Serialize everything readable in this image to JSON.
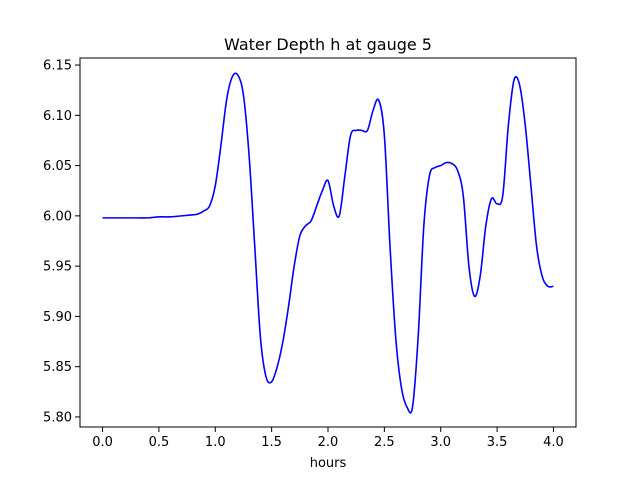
{
  "chart_data": {
    "type": "line",
    "title": "Water Depth h at gauge 5",
    "xlabel": "hours",
    "ylabel": "",
    "xlim": [
      -0.2,
      4.2
    ],
    "ylim": [
      5.79,
      6.157
    ],
    "x_ticks": [
      0.0,
      0.5,
      1.0,
      1.5,
      2.0,
      2.5,
      3.0,
      3.5,
      4.0
    ],
    "x_tick_labels": [
      "0.0",
      "0.5",
      "1.0",
      "1.5",
      "2.0",
      "2.5",
      "3.0",
      "3.5",
      "4.0"
    ],
    "y_ticks": [
      5.8,
      5.85,
      5.9,
      5.95,
      6.0,
      6.05,
      6.1,
      6.15
    ],
    "y_tick_labels": [
      "5.80",
      "5.85",
      "5.90",
      "5.95",
      "6.00",
      "6.05",
      "6.10",
      "6.15"
    ],
    "grid": false,
    "legend": "none",
    "series": [
      {
        "color": "#0000ff",
        "x": [
          0.0,
          0.1,
          0.2,
          0.3,
          0.4,
          0.5,
          0.6,
          0.7,
          0.8,
          0.85,
          0.9,
          0.95,
          1.0,
          1.05,
          1.1,
          1.15,
          1.2,
          1.25,
          1.3,
          1.35,
          1.4,
          1.45,
          1.5,
          1.55,
          1.6,
          1.65,
          1.7,
          1.75,
          1.8,
          1.85,
          1.9,
          1.95,
          2.0,
          2.05,
          2.1,
          2.15,
          2.2,
          2.25,
          2.3,
          2.35,
          2.4,
          2.45,
          2.5,
          2.55,
          2.6,
          2.65,
          2.7,
          2.75,
          2.8,
          2.85,
          2.9,
          2.95,
          3.0,
          3.05,
          3.1,
          3.15,
          3.2,
          3.25,
          3.3,
          3.35,
          3.4,
          3.45,
          3.5,
          3.55,
          3.6,
          3.65,
          3.7,
          3.75,
          3.8,
          3.85,
          3.9,
          3.95,
          4.0
        ],
        "values": [
          5.998,
          5.998,
          5.998,
          5.998,
          5.998,
          5.999,
          5.999,
          6.0,
          6.001,
          6.002,
          6.005,
          6.01,
          6.03,
          6.07,
          6.115,
          6.138,
          6.14,
          6.12,
          6.06,
          5.97,
          5.88,
          5.84,
          5.835,
          5.85,
          5.875,
          5.91,
          5.95,
          5.98,
          5.99,
          5.995,
          6.01,
          6.025,
          6.035,
          6.01,
          6.0,
          6.04,
          6.08,
          6.085,
          6.085,
          6.085,
          6.105,
          6.115,
          6.08,
          5.97,
          5.88,
          5.83,
          5.81,
          5.81,
          5.88,
          5.99,
          6.04,
          6.048,
          6.05,
          6.053,
          6.052,
          6.045,
          6.02,
          5.95,
          5.92,
          5.94,
          5.99,
          6.017,
          6.012,
          6.02,
          6.09,
          6.135,
          6.13,
          6.09,
          6.03,
          5.97,
          5.94,
          5.93,
          5.93
        ]
      }
    ]
  }
}
